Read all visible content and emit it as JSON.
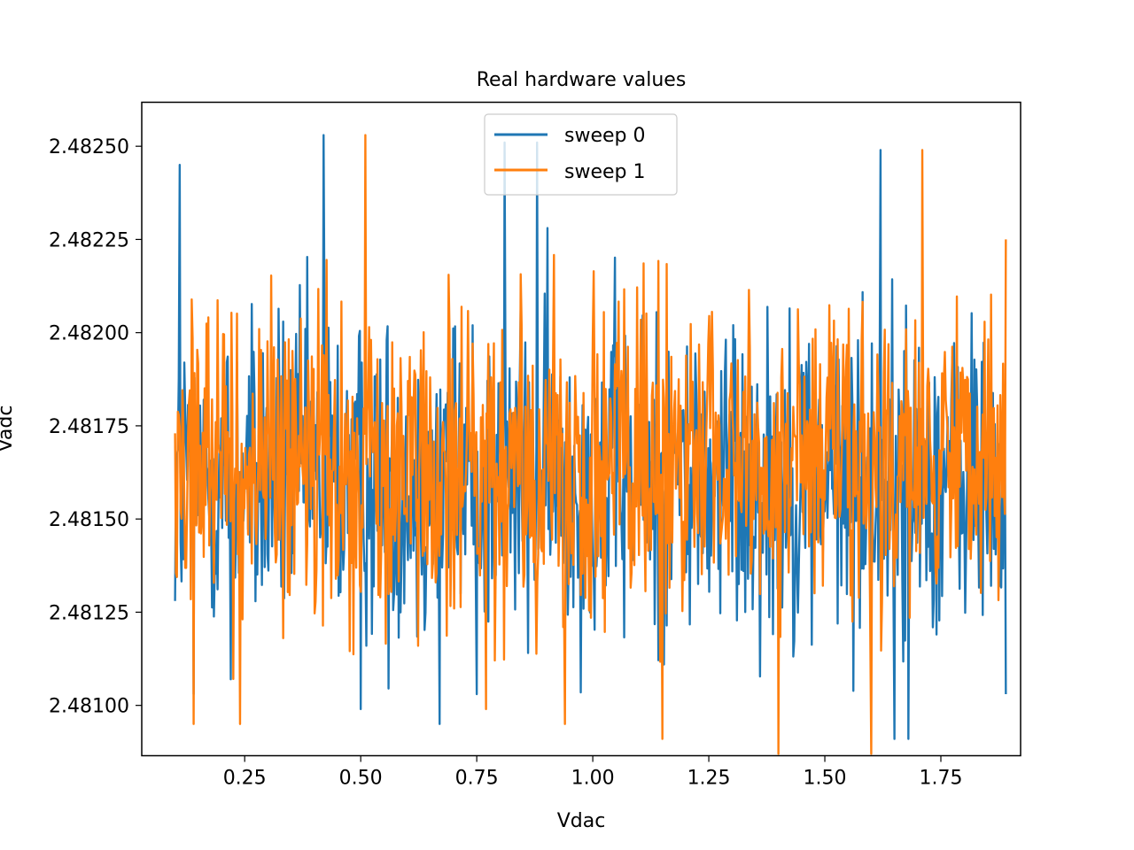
{
  "chart_data": {
    "type": "line",
    "title": "Real hardware values",
    "xlabel": "Vdac",
    "ylabel": "Vadc",
    "xlim": [
      0.0282,
      1.9218
    ],
    "ylim": [
      2.480865,
      2.482618
    ],
    "x_start": 0.1,
    "x_end": 1.89,
    "x_ticks": [
      0.25,
      0.5,
      0.75,
      1.0,
      1.25,
      1.5,
      1.75
    ],
    "x_tick_labels": [
      "0.25",
      "0.50",
      "0.75",
      "1.00",
      "1.25",
      "1.50",
      "1.75"
    ],
    "y_ticks": [
      2.481,
      2.48125,
      2.4815,
      2.48175,
      2.482,
      2.48225,
      2.4825
    ],
    "y_tick_labels": [
      "2.48100",
      "2.48125",
      "2.48150",
      "2.48175",
      "2.48200",
      "2.48225",
      "2.48250"
    ],
    "legend_position": "top-center",
    "grid": false,
    "series": [
      {
        "name": "sweep 0",
        "color": "#1f77b4",
        "mean": 2.48161,
        "spread": 0.0005,
        "y_min": 2.48091,
        "y_max": 2.48253,
        "x": [
          0.1,
          0.11,
          0.14,
          0.22,
          0.42,
          0.5,
          0.67,
          0.75,
          0.81,
          0.88,
          1.62,
          1.65,
          1.68,
          1.89
        ],
        "y": [
          2.48128,
          2.48245,
          2.48103,
          2.48107,
          2.48253,
          2.48099,
          2.48095,
          2.48103,
          2.48251,
          2.48251,
          2.48249,
          2.48091,
          2.48091,
          2.48103
        ]
      },
      {
        "name": "sweep 1",
        "color": "#ff7f0e",
        "mean": 2.48165,
        "spread": 0.00048,
        "y_min": 2.48087,
        "y_max": 2.48253,
        "x": [
          0.1,
          0.14,
          0.24,
          0.51,
          0.77,
          0.94,
          1.15,
          1.4,
          1.6,
          1.71,
          1.89
        ],
        "y": [
          2.48173,
          2.48095,
          2.48095,
          2.48253,
          2.48099,
          2.48095,
          2.48091,
          2.48087,
          2.48087,
          2.48249,
          2.48225
        ]
      }
    ]
  }
}
